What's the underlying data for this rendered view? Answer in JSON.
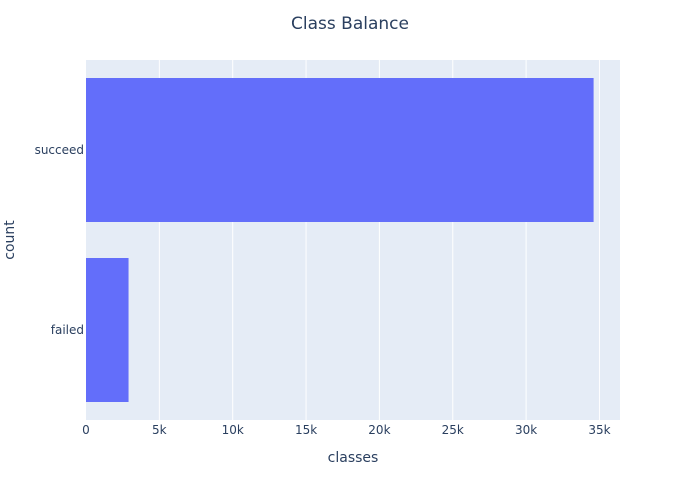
{
  "chart_data": {
    "type": "bar",
    "orientation": "horizontal",
    "title": "Class Balance",
    "xlabel": "classes",
    "ylabel": "count",
    "categories": [
      "failed",
      "succeed"
    ],
    "values": [
      2900,
      34600
    ],
    "xlim": [
      0,
      36400
    ],
    "xticks": [
      0,
      5000,
      10000,
      15000,
      20000,
      25000,
      30000,
      35000
    ],
    "xtick_labels": [
      "0",
      "5k",
      "10k",
      "15k",
      "20k",
      "25k",
      "30k",
      "35k"
    ],
    "grid": true,
    "legend": "none",
    "colors": {
      "bar": "#636efa",
      "plot_bg": "#e5ecf6",
      "grid": "#ffffff",
      "text": "#2a3f5f"
    }
  }
}
